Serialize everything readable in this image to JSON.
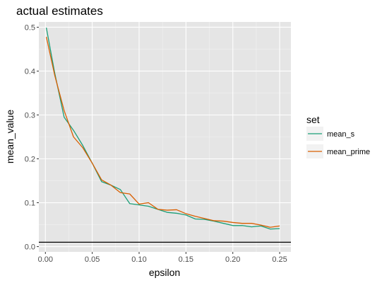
{
  "chart_data": {
    "type": "line",
    "title": "actual estimates",
    "xlabel": "epsilon",
    "ylabel": "mean_value",
    "xlim": [
      -0.007,
      0.262
    ],
    "ylim": [
      -0.012,
      0.512
    ],
    "x_ticks": [
      0.0,
      0.05,
      0.1,
      0.15,
      0.2,
      0.25
    ],
    "x_tick_labels": [
      "0.00",
      "0.05",
      "0.10",
      "0.15",
      "0.20",
      "0.25"
    ],
    "y_ticks": [
      0.0,
      0.1,
      0.2,
      0.3,
      0.4,
      0.5
    ],
    "y_tick_labels": [
      "0.0",
      "0.1",
      "0.2",
      "0.3",
      "0.4",
      "0.5"
    ],
    "grid": true,
    "background": "#e5e5e5",
    "legend": {
      "title": "set",
      "position": "right"
    },
    "hline": {
      "y": 0.01,
      "color": "#000000"
    },
    "x": [
      0.001,
      0.01,
      0.02,
      0.03,
      0.04,
      0.05,
      0.06,
      0.07,
      0.08,
      0.09,
      0.1,
      0.11,
      0.12,
      0.13,
      0.14,
      0.15,
      0.16,
      0.17,
      0.18,
      0.19,
      0.2,
      0.21,
      0.22,
      0.23,
      0.24,
      0.25
    ],
    "series": [
      {
        "name": "mean_s",
        "color": "#1b9e77",
        "values": [
          0.499,
          0.395,
          0.295,
          0.265,
          0.23,
          0.19,
          0.148,
          0.14,
          0.13,
          0.098,
          0.095,
          0.092,
          0.085,
          0.078,
          0.076,
          0.072,
          0.063,
          0.062,
          0.058,
          0.053,
          0.048,
          0.048,
          0.045,
          0.047,
          0.04,
          0.041
        ]
      },
      {
        "name": "mean_prime",
        "color": "#d95f02",
        "values": [
          0.478,
          0.39,
          0.31,
          0.25,
          0.225,
          0.19,
          0.152,
          0.14,
          0.123,
          0.12,
          0.097,
          0.1,
          0.085,
          0.083,
          0.084,
          0.075,
          0.069,
          0.064,
          0.059,
          0.058,
          0.055,
          0.053,
          0.053,
          0.049,
          0.044,
          0.047
        ]
      }
    ]
  }
}
